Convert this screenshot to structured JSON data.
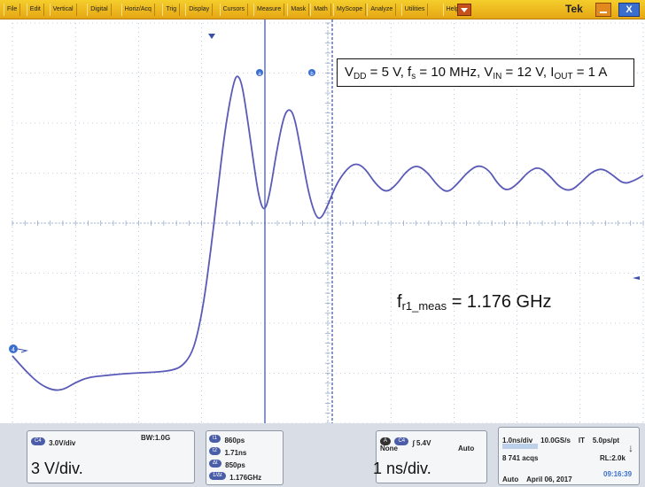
{
  "menu": {
    "items": [
      "File",
      "Edit",
      "Vertical",
      "Digital",
      "Horiz/Acq",
      "Trig",
      "Display",
      "Cursors",
      "Measure",
      "Mask",
      "Math",
      "MyScope",
      "Analyze",
      "Utilities",
      "Help"
    ],
    "brand": "Tek",
    "close_label": "X"
  },
  "graticule": {
    "cursor_a_label": "a",
    "cursor_b_label": "b",
    "ch4_marker": "4"
  },
  "annotation": {
    "conditions": {
      "vdd_sym": "V",
      "vdd_sub": "DD",
      "vdd_val": " = 5 V, ",
      "fs_sym": "f",
      "fs_sub": "s",
      "fs_val": " = 10 MHz, ",
      "vin_sym": "V",
      "vin_sub": "IN",
      "vin_val": " = 12 V, ",
      "iout_sym": "I",
      "iout_sub": "OUT",
      "iout_val": " = 1 A"
    },
    "freq_sym": "f",
    "freq_sub": "r1_meas",
    "freq_val": " = 1.176 GHz",
    "vscale_note": "3 V/div.",
    "hscale_note": "1 ns/div."
  },
  "status": {
    "ch4_tag": "C4",
    "ch4_scale": "3.0V/div",
    "bw": "BW:1.0G",
    "cursor_tags": [
      "t1",
      "t2",
      "Δt",
      "1/Δt"
    ],
    "cursor_values": [
      "860ps",
      "1.71ns",
      "850ps",
      "1.176GHz"
    ],
    "trig_tag_a": "A",
    "trig_tag_src": "C4",
    "trig_level": "∫ 5.4V",
    "trig_none": "None",
    "trig_mode": "Auto",
    "horiz_scale": "1.0ns/div",
    "sample_rate": "10.0GS/s",
    "it": "IT",
    "resolution": "5.0ps/pt",
    "acqs": "8 741 acqs",
    "record_length": "RL:2.0k",
    "run_mode": "Auto",
    "date": "April 06, 2017",
    "time": "09:16:39"
  },
  "colors": {
    "trace": "#5a5ab8",
    "grid": "#8da3c6",
    "cursor": "#3a4fa8",
    "menubar": "#f0c020"
  },
  "waveform": {
    "horizontal_scale": "1 ns/div",
    "vertical_scale": "3 V/div",
    "cursor_a_time_ns": 0.86,
    "cursor_b_time_ns": 1.71,
    "ringing_frequency_ghz": 1.176
  }
}
